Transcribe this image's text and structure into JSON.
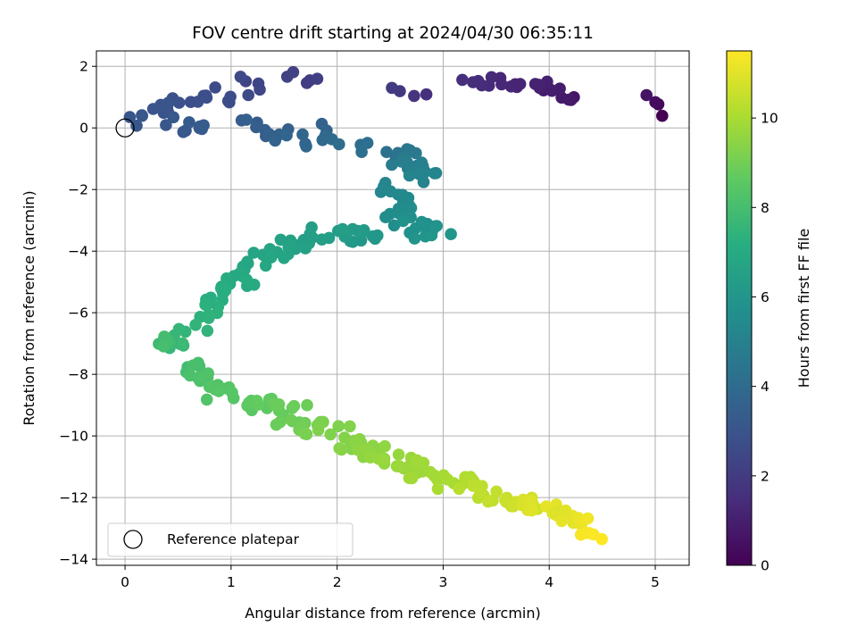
{
  "chart_data": {
    "type": "scatter",
    "title": "FOV centre drift starting at 2024/04/30 06:35:11",
    "xlabel": "Angular distance from reference (arcmin)",
    "ylabel": "Rotation from reference (arcmin)",
    "colorbar_label": "Hours from first FF file",
    "xlim": [
      -0.27,
      5.32
    ],
    "ylim": [
      -14.2,
      2.5
    ],
    "clim": [
      0,
      11.5
    ],
    "colormap": "viridis",
    "grid": true,
    "legend_position": "lower-left",
    "x_ticks": [
      0,
      1,
      2,
      3,
      4,
      5
    ],
    "y_ticks": [
      2,
      0,
      -2,
      -4,
      -6,
      -8,
      -10,
      -12,
      -14
    ],
    "colorbar_ticks": [
      0,
      2,
      4,
      6,
      8,
      10
    ],
    "reference": {
      "label": "Reference platepar",
      "x": 0,
      "y": 0
    },
    "segments": [
      {
        "t": [
          0.0,
          0.6
        ],
        "from": [
          5.05,
          0.45
        ],
        "to": [
          4.95,
          0.95
        ],
        "n": 4,
        "jx": 0.05,
        "jy": 0.15
      },
      {
        "t": [
          0.7,
          1.1
        ],
        "from": [
          4.2,
          0.9
        ],
        "to": [
          3.85,
          1.5
        ],
        "n": 12,
        "jx": 0.08,
        "jy": 0.15
      },
      {
        "t": [
          1.1,
          1.5
        ],
        "from": [
          3.75,
          1.4
        ],
        "to": [
          3.2,
          1.6
        ],
        "n": 12,
        "jx": 0.08,
        "jy": 0.2
      },
      {
        "t": [
          1.6,
          2.0
        ],
        "from": [
          2.85,
          1.0
        ],
        "to": [
          2.5,
          1.4
        ],
        "n": 4,
        "jx": 0.05,
        "jy": 0.1
      },
      {
        "t": [
          2.0,
          2.6
        ],
        "from": [
          1.85,
          1.7
        ],
        "to": [
          1.0,
          1.3
        ],
        "n": 10,
        "jx": 0.25,
        "jy": 0.35
      },
      {
        "t": [
          2.6,
          3.1
        ],
        "from": [
          1.0,
          1.0
        ],
        "to": [
          0.1,
          0.3
        ],
        "n": 22,
        "jx": 0.2,
        "jy": 0.3
      },
      {
        "t": [
          3.1,
          3.6
        ],
        "from": [
          0.3,
          0.1
        ],
        "to": [
          1.8,
          0.0
        ],
        "n": 20,
        "jx": 0.25,
        "jy": 0.3
      },
      {
        "t": [
          3.6,
          4.2
        ],
        "from": [
          1.5,
          -0.4
        ],
        "to": [
          2.3,
          -0.6
        ],
        "n": 12,
        "jx": 0.15,
        "jy": 0.25
      },
      {
        "t": [
          4.2,
          4.6
        ],
        "from": [
          2.5,
          -0.8
        ],
        "to": [
          2.7,
          -0.7
        ],
        "n": 6,
        "jx": 0.1,
        "jy": 0.2
      },
      {
        "t": [
          4.6,
          5.2
        ],
        "from": [
          2.6,
          -1.0
        ],
        "to": [
          2.85,
          -1.7
        ],
        "n": 20,
        "jx": 0.15,
        "jy": 0.25
      },
      {
        "t": [
          5.2,
          5.5
        ],
        "from": [
          2.45,
          -1.9
        ],
        "to": [
          2.65,
          -2.5
        ],
        "n": 10,
        "jx": 0.1,
        "jy": 0.15
      },
      {
        "t": [
          5.5,
          6.0
        ],
        "from": [
          2.6,
          -2.7
        ],
        "to": [
          2.9,
          -3.6
        ],
        "n": 20,
        "jx": 0.2,
        "jy": 0.3
      },
      {
        "t": [
          6.0,
          6.4
        ],
        "from": [
          2.35,
          -3.6
        ],
        "to": [
          1.9,
          -3.3
        ],
        "n": 16,
        "jx": 0.15,
        "jy": 0.2
      },
      {
        "t": [
          6.4,
          6.8
        ],
        "from": [
          1.8,
          -3.5
        ],
        "to": [
          1.3,
          -4.2
        ],
        "n": 22,
        "jx": 0.15,
        "jy": 0.2
      },
      {
        "t": [
          6.8,
          7.2
        ],
        "from": [
          1.25,
          -4.5
        ],
        "to": [
          0.85,
          -5.5
        ],
        "n": 22,
        "jx": 0.15,
        "jy": 0.25
      },
      {
        "t": [
          7.2,
          7.6
        ],
        "from": [
          0.85,
          -5.6
        ],
        "to": [
          0.55,
          -6.9
        ],
        "n": 14,
        "jx": 0.12,
        "jy": 0.25
      },
      {
        "t": [
          7.6,
          8.0
        ],
        "from": [
          0.5,
          -6.9
        ],
        "to": [
          0.3,
          -7.0
        ],
        "n": 10,
        "jx": 0.12,
        "jy": 0.25
      },
      {
        "t": [
          7.9,
          8.4
        ],
        "from": [
          0.55,
          -7.6
        ],
        "to": [
          0.85,
          -8.3
        ],
        "n": 16,
        "jx": 0.1,
        "jy": 0.25
      },
      {
        "t": [
          8.3,
          8.9
        ],
        "from": [
          0.9,
          -8.6
        ],
        "to": [
          1.6,
          -9.3
        ],
        "n": 26,
        "jx": 0.15,
        "jy": 0.3
      },
      {
        "t": [
          8.8,
          9.3
        ],
        "from": [
          1.5,
          -9.4
        ],
        "to": [
          2.0,
          -10.0
        ],
        "n": 20,
        "jx": 0.15,
        "jy": 0.3
      },
      {
        "t": [
          9.3,
          9.9
        ],
        "from": [
          2.0,
          -10.2
        ],
        "to": [
          2.85,
          -11.2
        ],
        "n": 40,
        "jx": 0.15,
        "jy": 0.3
      },
      {
        "t": [
          9.9,
          10.5
        ],
        "from": [
          2.9,
          -11.3
        ],
        "to": [
          3.6,
          -12.0
        ],
        "n": 22,
        "jx": 0.15,
        "jy": 0.3
      },
      {
        "t": [
          10.5,
          11.1
        ],
        "from": [
          3.6,
          -12.1
        ],
        "to": [
          4.1,
          -12.4
        ],
        "n": 18,
        "jx": 0.15,
        "jy": 0.25
      },
      {
        "t": [
          10.9,
          11.5
        ],
        "from": [
          4.1,
          -12.5
        ],
        "to": [
          4.45,
          -13.1
        ],
        "n": 14,
        "jx": 0.1,
        "jy": 0.25
      }
    ]
  }
}
